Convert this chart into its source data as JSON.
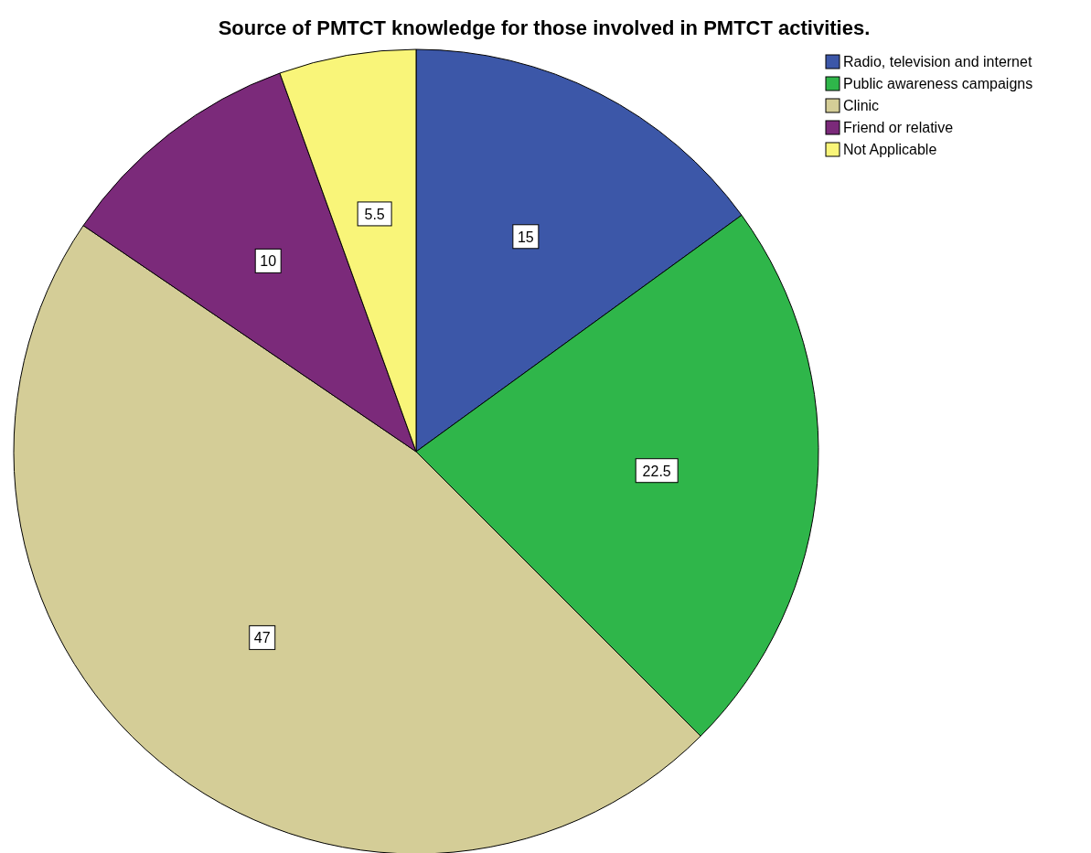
{
  "chart_data": {
    "type": "pie",
    "title": "Source of PMTCT knowledge for those involved in PMTCT activities.",
    "categories": [
      "Radio, television and internet",
      "Public awareness campaigns",
      "Clinic",
      "Friend or relative",
      "Not Applicable"
    ],
    "values": [
      15,
      22.5,
      47,
      10,
      5.5
    ],
    "colors": [
      "#3c57a8",
      "#2fb64a",
      "#d4cd97",
      "#7b2a7a",
      "#f9f579"
    ],
    "data_labels": true,
    "legend": "top right"
  }
}
